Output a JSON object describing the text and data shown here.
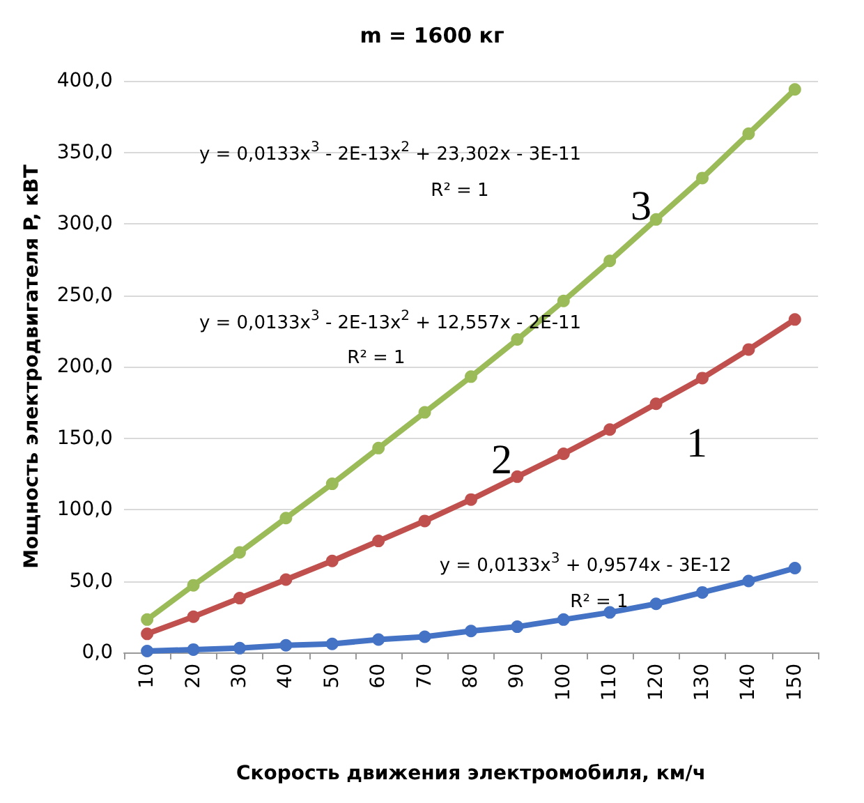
{
  "chart_data": {
    "type": "line",
    "title": "m = 1600 кг",
    "xlabel": "Скорость движения электромобиля, км/ч",
    "ylabel": "Мощность электродвигателя P, кВТ",
    "categories": [
      "10",
      "20",
      "30",
      "40",
      "50",
      "60",
      "70",
      "80",
      "90",
      "100",
      "110",
      "120",
      "130",
      "140",
      "150"
    ],
    "series": [
      {
        "color": "#4472c4",
        "values": [
          1,
          2,
          3,
          5,
          6,
          9,
          11,
          15,
          18,
          23,
          28,
          34,
          42,
          50,
          59
        ]
      },
      {
        "color": "#c0504d",
        "values": [
          13,
          25,
          38,
          51,
          64,
          78,
          92,
          107,
          123,
          139,
          156,
          174,
          192,
          212,
          233
        ]
      },
      {
        "color": "#9bbb59",
        "values": [
          23,
          47,
          70,
          94,
          118,
          143,
          168,
          193,
          219,
          246,
          274,
          303,
          332,
          363,
          394
        ]
      }
    ],
    "ylim": [
      0,
      400
    ],
    "yticks": [
      {
        "value": 0,
        "label": "0,0"
      },
      {
        "value": 50,
        "label": "50,0"
      },
      {
        "value": 100,
        "label": "100,0"
      },
      {
        "value": 150,
        "label": "150,0"
      },
      {
        "value": 200,
        "label": "200,0"
      },
      {
        "value": 250,
        "label": "250,0"
      },
      {
        "value": 300,
        "label": "300,0"
      },
      {
        "value": 350,
        "label": "350,0"
      },
      {
        "value": 400,
        "label": "400,0"
      }
    ],
    "grid": "y",
    "marker": "circle",
    "line_style": "solid",
    "annotations": [
      "y = 0,0133x$^{3}$ - 2E-13x$^{2}$ + 23,302x - 3E-11",
      "R² = 1",
      "3",
      "y = 0,0133x$^{3}$ - 2E-13x$^{2}$ + 12,557x - 2E-11",
      "R² = 1",
      "2",
      "y = 0,0133x$^{3}$ + 0,9574x - 3E-12",
      "R² = 1",
      "1"
    ]
  }
}
